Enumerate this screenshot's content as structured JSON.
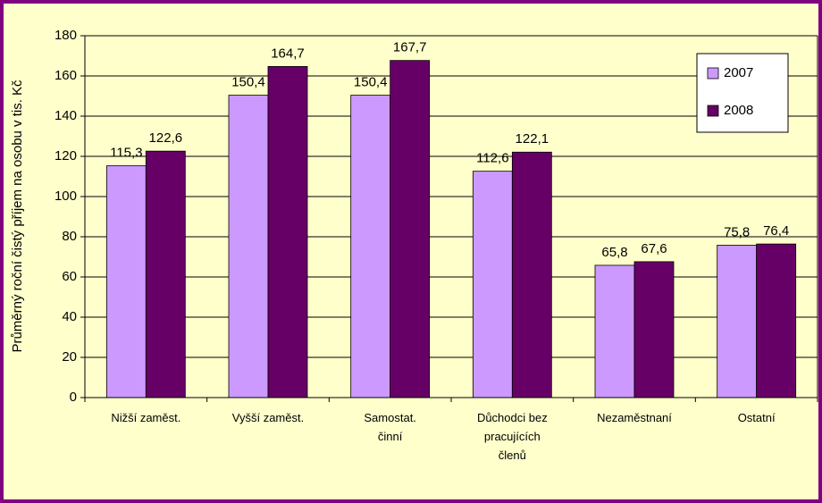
{
  "chart_data": {
    "type": "bar",
    "y_label": "Průměrný roční čistý příjem na osobu v tis. Kč",
    "categories": [
      "Nižší zaměst.",
      "Vyšší zaměst.",
      "Samostat. činní",
      "Důchodci bez pracujících členů",
      "Nezaměstnaní",
      "Ostatní"
    ],
    "series": [
      {
        "name": "2007",
        "color": "#cc99ff",
        "values": [
          115.3,
          150.4,
          150.4,
          112.6,
          65.8,
          75.8
        ],
        "value_labels": [
          "115,3",
          "150,4",
          "150,4",
          "112,6",
          "65,8",
          "75,8"
        ]
      },
      {
        "name": "2008",
        "color": "#660066",
        "values": [
          122.6,
          164.7,
          167.7,
          122.1,
          67.6,
          76.4
        ],
        "value_labels": [
          "122,6",
          "164,7",
          "167,7",
          "122,1",
          "67,6",
          "76,4"
        ]
      }
    ],
    "ylim": [
      0,
      180
    ],
    "yticks": [
      0,
      20,
      40,
      60,
      80,
      100,
      120,
      140,
      160,
      180
    ],
    "grid": true,
    "legend": "top-right"
  }
}
